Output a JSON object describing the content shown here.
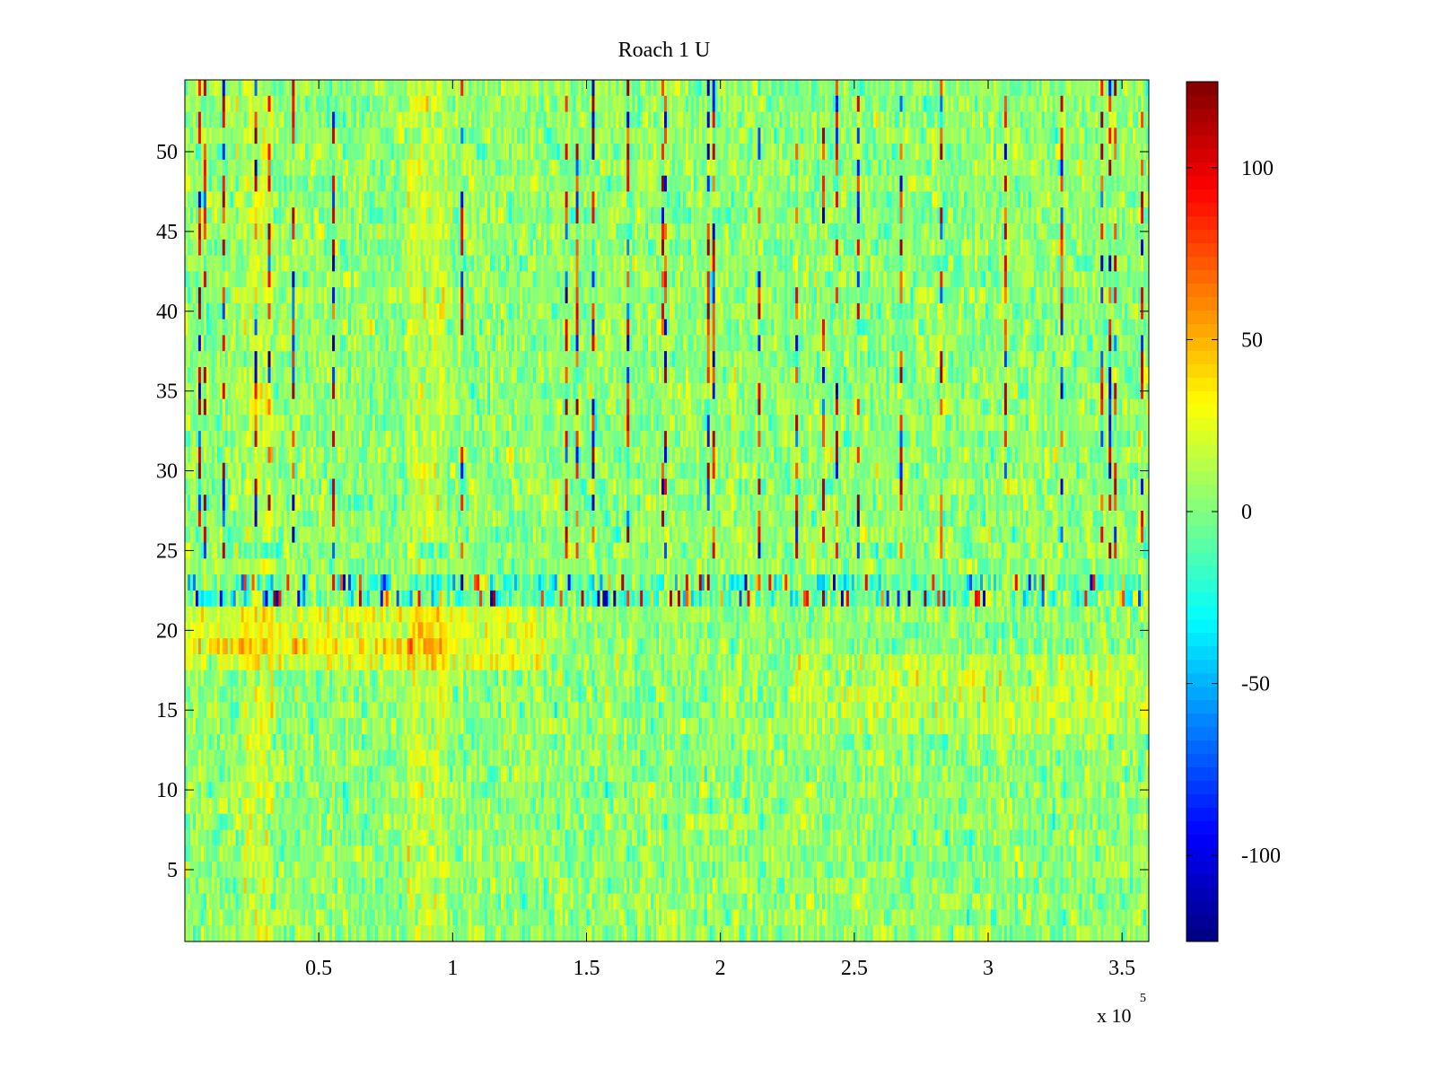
{
  "chart_data": {
    "type": "heatmap",
    "title": "Roach 1 U",
    "xlabel": "",
    "ylabel": "",
    "x_multiplier": {
      "base": "x 10",
      "exponent": "5"
    },
    "xlim": [
      0,
      360000
    ],
    "ylim": [
      0.5,
      54.5
    ],
    "x_ticks": [
      {
        "value": 50000,
        "label": "0.5"
      },
      {
        "value": 100000,
        "label": "1"
      },
      {
        "value": 150000,
        "label": "1.5"
      },
      {
        "value": 200000,
        "label": "2"
      },
      {
        "value": 250000,
        "label": "2.5"
      },
      {
        "value": 300000,
        "label": "3"
      },
      {
        "value": 350000,
        "label": "3.5"
      }
    ],
    "y_ticks": [
      {
        "value": 5,
        "label": "5"
      },
      {
        "value": 10,
        "label": "10"
      },
      {
        "value": 15,
        "label": "15"
      },
      {
        "value": 20,
        "label": "20"
      },
      {
        "value": 25,
        "label": "25"
      },
      {
        "value": 30,
        "label": "30"
      },
      {
        "value": 35,
        "label": "35"
      },
      {
        "value": 40,
        "label": "40"
      },
      {
        "value": 45,
        "label": "45"
      },
      {
        "value": 50,
        "label": "50"
      }
    ],
    "colorbar": {
      "colormap": "jet",
      "range": [
        -125,
        125
      ],
      "ticks": [
        {
          "value": 100,
          "label": "100"
        },
        {
          "value": 50,
          "label": "50"
        },
        {
          "value": 0,
          "label": "0"
        },
        {
          "value": -50,
          "label": "-50"
        },
        {
          "value": -100,
          "label": "-100"
        }
      ]
    },
    "rows": 54,
    "grid": false
  }
}
